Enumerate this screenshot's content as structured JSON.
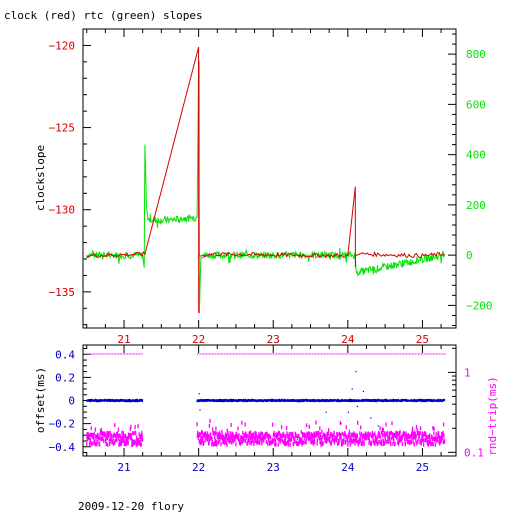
{
  "title": "clock (red) rtc (green) slopes",
  "footer": "2009-12-20 flory",
  "colors": {
    "red": "#d40000",
    "green": "#00e600",
    "blue": "#0000cc",
    "magenta": "#ff00ff",
    "axis": "#000000"
  },
  "chart_data": [
    {
      "type": "line",
      "title": "clock (red) rtc (green) slopes",
      "xlabel": "",
      "ylabel": "clockslope",
      "y2label": "",
      "xlim": [
        20.45,
        25.45
      ],
      "ylim": [
        -137.2,
        -119
      ],
      "y2lim": [
        -290,
        900
      ],
      "x_ticks": [
        21,
        22,
        23,
        24,
        25
      ],
      "y_ticks": [
        -135,
        -130,
        -125,
        -120
      ],
      "y2_ticks": [
        -200,
        0,
        200,
        400,
        600,
        800
      ],
      "grid": false,
      "series": [
        {
          "name": "clock",
          "color": "#d40000",
          "axis": "left",
          "x": [
            20.5,
            21.28,
            22.0,
            22.001,
            22.005,
            22.006,
            22.2,
            23.0,
            24.0,
            24.1,
            24.101,
            24.102,
            24.2,
            25.0,
            25.3
          ],
          "y": [
            -132.8,
            -132.7,
            -120.1,
            -136.3,
            -121,
            -132.8,
            -132.7,
            -132.75,
            -132.8,
            -128.6,
            -133.5,
            -132.8,
            -132.7,
            -132.8,
            -132.7
          ]
        },
        {
          "name": "rtc",
          "color": "#00e600",
          "axis": "right",
          "x": [
            20.5,
            21.25,
            21.27,
            21.28,
            21.3,
            21.32,
            21.6,
            21.98,
            22.0,
            22.01,
            22.03,
            23.5,
            24.1,
            24.11,
            25.3
          ],
          "y": [
            0,
            0,
            -50,
            440,
            200,
            140,
            140,
            150,
            780,
            -230,
            0,
            0,
            0,
            -70,
            0
          ]
        }
      ]
    },
    {
      "type": "scatter",
      "title": "",
      "xlabel": "",
      "ylabel": "offset(ms)",
      "y2label": "rnd−trip(ms)",
      "xlim": [
        20.45,
        25.45
      ],
      "ylim": [
        -0.48,
        0.48
      ],
      "y2_scale": "log",
      "y2lim": [
        0.09,
        2.2
      ],
      "x_ticks": [
        21,
        22,
        23,
        24,
        25
      ],
      "y_ticks": [
        -0.4,
        -0.2,
        0,
        0.2,
        0.4
      ],
      "y_tick_labels": [
        "−0.4",
        "−0.2",
        "0",
        "0.2",
        "0.4"
      ],
      "y2_ticks": [
        0.1,
        1
      ],
      "y2_tick_labels": [
        "0.1",
        "1"
      ],
      "grid": false,
      "series": [
        {
          "name": "offset",
          "color": "#0000cc",
          "axis": "left",
          "segments": [
            [
              20.5,
              21.25,
              0.0
            ],
            [
              21.98,
              25.3,
              0.0
            ]
          ],
          "outliers_x": [
            22.0,
            22.01,
            23.7,
            23.9,
            24.0,
            24.05,
            24.1,
            24.12,
            24.2,
            24.3,
            24.4
          ],
          "outliers_y": [
            0.06,
            -0.08,
            -0.1,
            -0.2,
            -0.1,
            0.1,
            0.25,
            -0.05,
            0.08,
            -0.15,
            -0.22
          ]
        },
        {
          "name": "rnd-trip",
          "color": "#ff00ff",
          "axis": "right",
          "segments": [
            [
              20.5,
              21.25,
              0.15
            ],
            [
              21.98,
              25.3,
              0.15
            ]
          ],
          "upper_segments": [
            [
              20.5,
              21.25,
              1.7
            ],
            [
              21.98,
              25.3,
              1.7
            ]
          ]
        }
      ]
    }
  ]
}
